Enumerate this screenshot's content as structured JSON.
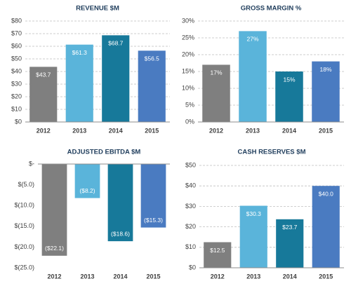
{
  "chart_data": [
    {
      "type": "bar",
      "title": "REVENUE $M",
      "categories": [
        "2012",
        "2013",
        "2014",
        "2015"
      ],
      "values": [
        43.7,
        61.3,
        68.7,
        56.5
      ],
      "value_labels": [
        "$43.7",
        "$61.3",
        "$68.7",
        "$56.5"
      ],
      "colors": [
        "#7f7f7f",
        "#5ab4da",
        "#17799a",
        "#4a7bc1"
      ],
      "ylim": [
        0,
        80
      ],
      "yticks": [
        {
          "value": 0,
          "label": "$0"
        },
        {
          "value": 10,
          "label": "$10"
        },
        {
          "value": 20,
          "label": "$20"
        },
        {
          "value": 30,
          "label": "$30"
        },
        {
          "value": 40,
          "label": "$40"
        },
        {
          "value": 50,
          "label": "$50"
        },
        {
          "value": 60,
          "label": "$60"
        },
        {
          "value": 70,
          "label": "$70"
        },
        {
          "value": 80,
          "label": "$80"
        }
      ],
      "grid": true
    },
    {
      "type": "bar",
      "title": "GROSS MARGIN %",
      "categories": [
        "2012",
        "2013",
        "2014",
        "2015"
      ],
      "values": [
        17,
        27,
        15,
        18
      ],
      "value_labels": [
        "17%",
        "27%",
        "15%",
        "18%"
      ],
      "colors": [
        "#7f7f7f",
        "#5ab4da",
        "#17799a",
        "#4a7bc1"
      ],
      "ylim": [
        0,
        30
      ],
      "yticks": [
        {
          "value": 0,
          "label": "0%"
        },
        {
          "value": 5,
          "label": "5%"
        },
        {
          "value": 10,
          "label": "10%"
        },
        {
          "value": 15,
          "label": "15%"
        },
        {
          "value": 20,
          "label": "20%"
        },
        {
          "value": 25,
          "label": "25%"
        },
        {
          "value": 30,
          "label": "30%"
        }
      ],
      "grid": true
    },
    {
      "type": "bar",
      "title": "ADJUSTED EBITDA $M",
      "categories": [
        "2012",
        "2013",
        "2014",
        "2015"
      ],
      "values": [
        -22.1,
        -8.2,
        -18.6,
        -15.3
      ],
      "value_labels": [
        "($22.1)",
        "($8.2)",
        "($18.6)",
        "($15.3)"
      ],
      "colors": [
        "#7f7f7f",
        "#5ab4da",
        "#17799a",
        "#4a7bc1"
      ],
      "ylim": [
        -25,
        0
      ],
      "yticks": [
        {
          "value": 0,
          "label": "$-"
        },
        {
          "value": -5,
          "label": "$(5.0)"
        },
        {
          "value": -10,
          "label": "$(10.0)"
        },
        {
          "value": -15,
          "label": "$(15.0)"
        },
        {
          "value": -20,
          "label": "$(20.0)"
        },
        {
          "value": -25,
          "label": "$(25.0)"
        }
      ],
      "grid": false
    },
    {
      "type": "bar",
      "title": "CASH RESERVES $M",
      "categories": [
        "2012",
        "2013",
        "2014",
        "2015"
      ],
      "values": [
        12.5,
        30.3,
        23.7,
        40.0
      ],
      "value_labels": [
        "$12.5",
        "$30.3",
        "$23.7",
        "$40.0"
      ],
      "colors": [
        "#7f7f7f",
        "#5ab4da",
        "#17799a",
        "#4a7bc1"
      ],
      "ylim": [
        0,
        50
      ],
      "yticks": [
        {
          "value": 0,
          "label": "$0"
        },
        {
          "value": 10,
          "label": "$10"
        },
        {
          "value": 20,
          "label": "$20"
        },
        {
          "value": 30,
          "label": "$30"
        },
        {
          "value": 40,
          "label": "$40"
        },
        {
          "value": 50,
          "label": "$50"
        }
      ],
      "grid": true
    }
  ]
}
